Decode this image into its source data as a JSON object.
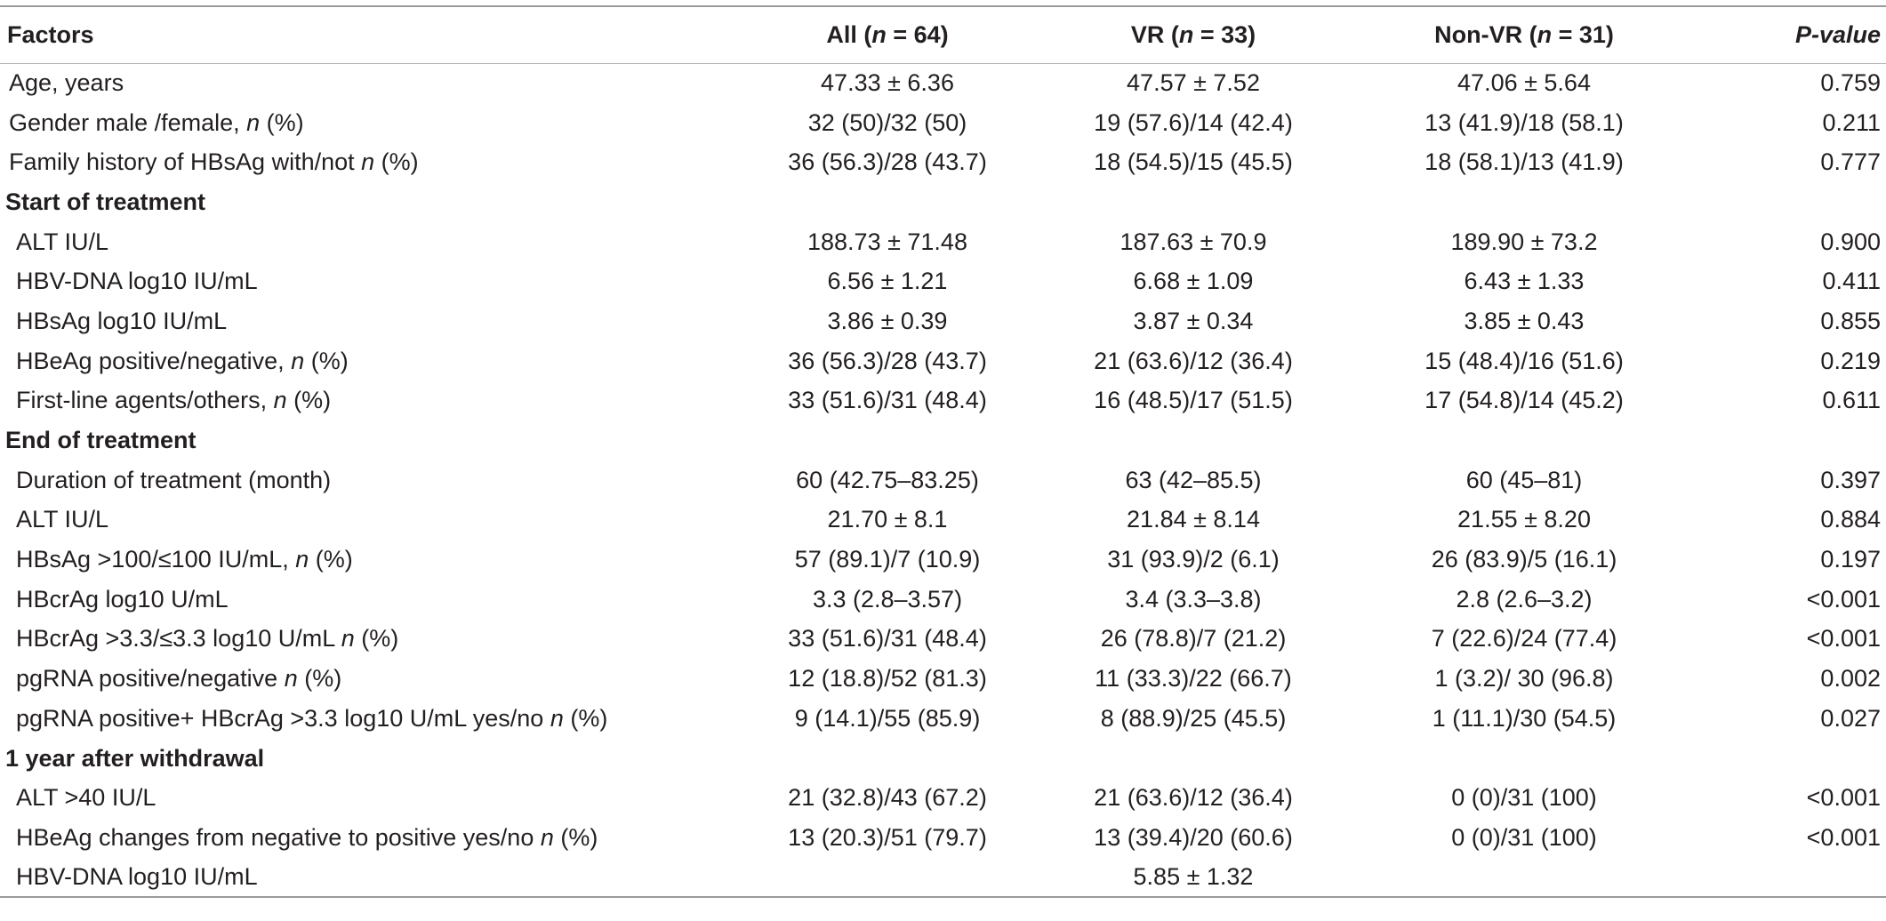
{
  "header": {
    "factors": "Factors",
    "all": {
      "pre": "All (",
      "n": "n",
      "post": " = 64)"
    },
    "vr": {
      "pre": "VR (",
      "n": "n",
      "post": " = 33)"
    },
    "nonvr": {
      "pre": "Non-VR (",
      "n": "n",
      "post": " = 31)"
    },
    "pvalue": "P-value"
  },
  "rows": [
    {
      "type": "row",
      "label": "Age, years",
      "italic_n": false,
      "all": "47.33 ± 6.36",
      "vr": "47.57 ± 7.52",
      "nonvr": "47.06 ± 5.64",
      "p": "0.759"
    },
    {
      "type": "row",
      "label": "Gender male /female, ",
      "italic_n": true,
      "label_tail": " (%)",
      "all": "32 (50)/32 (50)",
      "vr": "19 (57.6)/14 (42.4)",
      "nonvr": "13 (41.9)/18 (58.1)",
      "p": "0.211"
    },
    {
      "type": "row",
      "label": "Family history of HBsAg with/not ",
      "italic_n": true,
      "label_tail": " (%)",
      "all": "36 (56.3)/28 (43.7)",
      "vr": "18 (54.5)/15 (45.5)",
      "nonvr": "18 (58.1)/13 (41.9)",
      "p": "0.777"
    },
    {
      "type": "section",
      "label": "Start of treatment"
    },
    {
      "type": "sub",
      "label": "ALT IU/L",
      "italic_n": false,
      "all": "188.73 ± 71.48",
      "vr": "187.63 ± 70.9",
      "nonvr": "189.90 ± 73.2",
      "p": "0.900"
    },
    {
      "type": "sub",
      "label": "HBV-DNA log10 IU/mL",
      "italic_n": false,
      "all": "6.56 ± 1.21",
      "vr": "6.68 ± 1.09",
      "nonvr": "6.43 ± 1.33",
      "p": "0.411"
    },
    {
      "type": "sub",
      "label": "HBsAg log10 IU/mL",
      "italic_n": false,
      "all": "3.86 ± 0.39",
      "vr": "3.87 ± 0.34",
      "nonvr": "3.85 ± 0.43",
      "p": "0.855"
    },
    {
      "type": "sub",
      "label": "HBeAg positive/negative, ",
      "italic_n": true,
      "label_tail": " (%)",
      "all": "36 (56.3)/28 (43.7)",
      "vr": "21 (63.6)/12 (36.4)",
      "nonvr": "15 (48.4)/16 (51.6)",
      "p": "0.219"
    },
    {
      "type": "sub",
      "label": "First-line agents/others, ",
      "italic_n": true,
      "label_tail": " (%)",
      "all": "33 (51.6)/31 (48.4)",
      "vr": "16 (48.5)/17 (51.5)",
      "nonvr": "17 (54.8)/14 (45.2)",
      "p": "0.611"
    },
    {
      "type": "section",
      "label": "End of treatment"
    },
    {
      "type": "sub",
      "label": "Duration of treatment (month)",
      "italic_n": false,
      "all": "60 (42.75–83.25)",
      "vr": "63 (42–85.5)",
      "nonvr": "60 (45–81)",
      "p": "0.397"
    },
    {
      "type": "sub",
      "label": "ALT IU/L",
      "italic_n": false,
      "all": "21.70 ± 8.1",
      "vr": "21.84 ± 8.14",
      "nonvr": "21.55 ± 8.20",
      "p": "0.884"
    },
    {
      "type": "sub",
      "label": "HBsAg >100/≤100 IU/mL, ",
      "italic_n": true,
      "label_tail": " (%)",
      "all": "57 (89.1)/7 (10.9)",
      "vr": "31 (93.9)/2 (6.1)",
      "nonvr": "26 (83.9)/5 (16.1)",
      "p": "0.197"
    },
    {
      "type": "sub",
      "label": "HBcrAg log10 U/mL",
      "italic_n": false,
      "all": "3.3 (2.8–3.57)",
      "vr": "3.4 (3.3–3.8)",
      "nonvr": "2.8 (2.6–3.2)",
      "p": "<0.001"
    },
    {
      "type": "sub",
      "label": "HBcrAg >3.3/≤3.3 log10 U/mL ",
      "italic_n": true,
      "label_tail": " (%)",
      "all": "33 (51.6)/31 (48.4)",
      "vr": "26 (78.8)/7 (21.2)",
      "nonvr": "7 (22.6)/24 (77.4)",
      "p": "<0.001"
    },
    {
      "type": "sub",
      "label": "pgRNA positive/negative ",
      "italic_n": true,
      "label_tail": " (%)",
      "all": "12 (18.8)/52 (81.3)",
      "vr": "11 (33.3)/22 (66.7)",
      "nonvr": "1 (3.2)/ 30 (96.8)",
      "p": "0.002"
    },
    {
      "type": "sub",
      "label": "pgRNA positive+ HBcrAg >3.3 log10 U/mL yes/no ",
      "italic_n": true,
      "label_tail": " (%)",
      "all": "9 (14.1)/55 (85.9)",
      "vr": "8 (88.9)/25 (45.5)",
      "nonvr": "1 (11.1)/30 (54.5)",
      "p": "0.027"
    },
    {
      "type": "section",
      "label": "1 year after withdrawal"
    },
    {
      "type": "sub",
      "label": "ALT >40 IU/L",
      "italic_n": false,
      "all": "21 (32.8)/43 (67.2)",
      "vr": "21 (63.6)/12 (36.4)",
      "nonvr": "0 (0)/31 (100)",
      "p": "<0.001"
    },
    {
      "type": "sub",
      "label": "HBeAg changes from negative to positive yes/no ",
      "italic_n": true,
      "label_tail": " (%)",
      "all": "13 (20.3)/51 (79.7)",
      "vr": "13 (39.4)/20 (60.6)",
      "nonvr": "0 (0)/31 (100)",
      "p": "<0.001"
    },
    {
      "type": "sub",
      "label": "HBV-DNA log10 IU/mL",
      "italic_n": false,
      "all": "",
      "vr": "5.85 ± 1.32",
      "nonvr": "",
      "p": ""
    }
  ],
  "n_symbol": "n"
}
